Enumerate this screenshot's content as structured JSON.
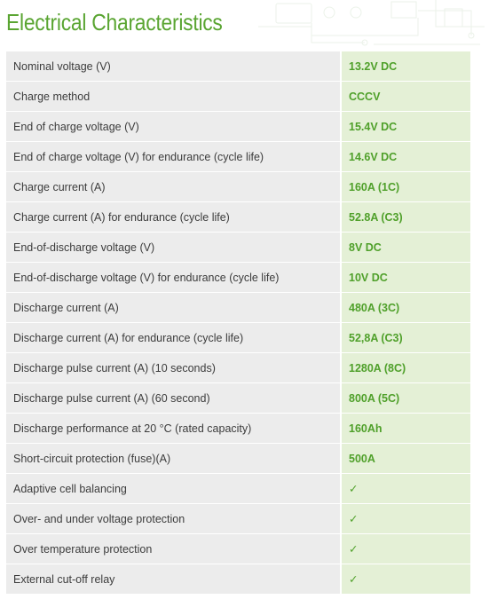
{
  "title": "Electrical Characteristics",
  "rows": [
    {
      "label": "Nominal voltage (V)",
      "value": "13.2V DC"
    },
    {
      "label": "Charge method",
      "value": "CCCV"
    },
    {
      "label": "End of charge voltage (V)",
      "value": "15.4V DC"
    },
    {
      "label": "End of charge voltage (V) for endurance (cycle life)",
      "value": "14.6V DC"
    },
    {
      "label": "Charge current (A)",
      "value": "160A (1C)"
    },
    {
      "label": "Charge current (A) for endurance (cycle life)",
      "value": "52.8A (C3)"
    },
    {
      "label": "End-of-discharge voltage (V)",
      "value": "8V DC"
    },
    {
      "label": "End-of-discharge voltage (V) for endurance (cycle life)",
      "value": "10V DC"
    },
    {
      "label": "Discharge current (A)",
      "value": "480A (3C)"
    },
    {
      "label": "Discharge current (A) for endurance (cycle life)",
      "value": "52,8A (C3)"
    },
    {
      "label": "Discharge pulse current (A) (10 seconds)",
      "value": "1280A (8C)"
    },
    {
      "label": "Discharge pulse current (A) (60 second)",
      "value": "800A (5C)"
    },
    {
      "label": "Discharge performance at 20 °C (rated capacity)",
      "value": "160Ah"
    },
    {
      "label": "Short-circuit protection (fuse)(A)",
      "value": "500A"
    },
    {
      "label": "Adaptive cell balancing",
      "value": "✓"
    },
    {
      "label": "Over- and under voltage protection",
      "value": "✓"
    },
    {
      "label": "Over temperature protection",
      "value": "✓"
    },
    {
      "label": "External cut-off relay",
      "value": "✓"
    }
  ]
}
